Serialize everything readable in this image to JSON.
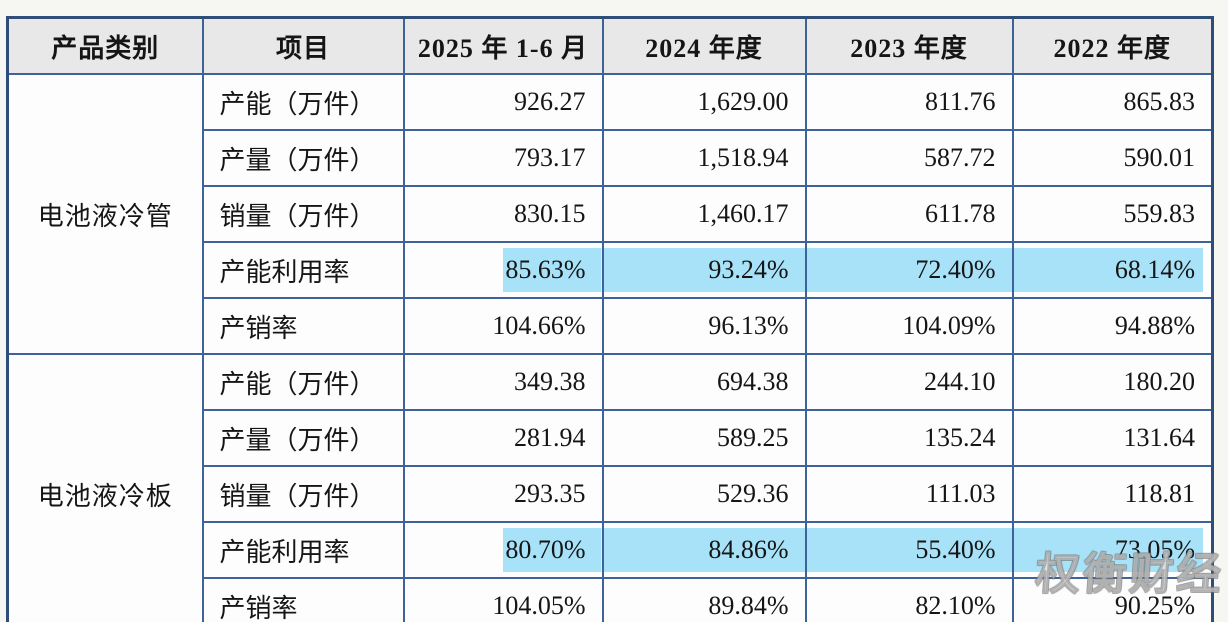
{
  "colors": {
    "highlight": "#a8e2f8",
    "border": "#3d6398",
    "border_dark": "#2e4d79",
    "header_bg": "#e8e8e8"
  },
  "watermark": "权衡财经",
  "table": {
    "headers": [
      "产品类别",
      "项目",
      "2025 年 1-6 月",
      "2024 年度",
      "2023 年度",
      "2022 年度"
    ],
    "groups": [
      {
        "category": "电池液冷管",
        "rows": [
          {
            "label": "产能（万件）",
            "values": [
              "926.27",
              "1,629.00",
              "811.76",
              "865.83"
            ],
            "highlight": false
          },
          {
            "label": "产量（万件）",
            "values": [
              "793.17",
              "1,518.94",
              "587.72",
              "590.01"
            ],
            "highlight": false
          },
          {
            "label": "销量（万件）",
            "values": [
              "830.15",
              "1,460.17",
              "611.78",
              "559.83"
            ],
            "highlight": false
          },
          {
            "label": "产能利用率",
            "values": [
              "85.63%",
              "93.24%",
              "72.40%",
              "68.14%"
            ],
            "highlight": true
          },
          {
            "label": "产销率",
            "values": [
              "104.66%",
              "96.13%",
              "104.09%",
              "94.88%"
            ],
            "highlight": false
          }
        ]
      },
      {
        "category": "电池液冷板",
        "rows": [
          {
            "label": "产能（万件）",
            "values": [
              "349.38",
              "694.38",
              "244.10",
              "180.20"
            ],
            "highlight": false
          },
          {
            "label": "产量（万件）",
            "values": [
              "281.94",
              "589.25",
              "135.24",
              "131.64"
            ],
            "highlight": false
          },
          {
            "label": "销量（万件）",
            "values": [
              "293.35",
              "529.36",
              "111.03",
              "118.81"
            ],
            "highlight": false
          },
          {
            "label": "产能利用率",
            "values": [
              "80.70%",
              "84.86%",
              "55.40%",
              "73.05%"
            ],
            "highlight": true
          },
          {
            "label": "产销率",
            "values": [
              "104.05%",
              "89.84%",
              "82.10%",
              "90.25%"
            ],
            "highlight": false
          }
        ]
      }
    ]
  }
}
